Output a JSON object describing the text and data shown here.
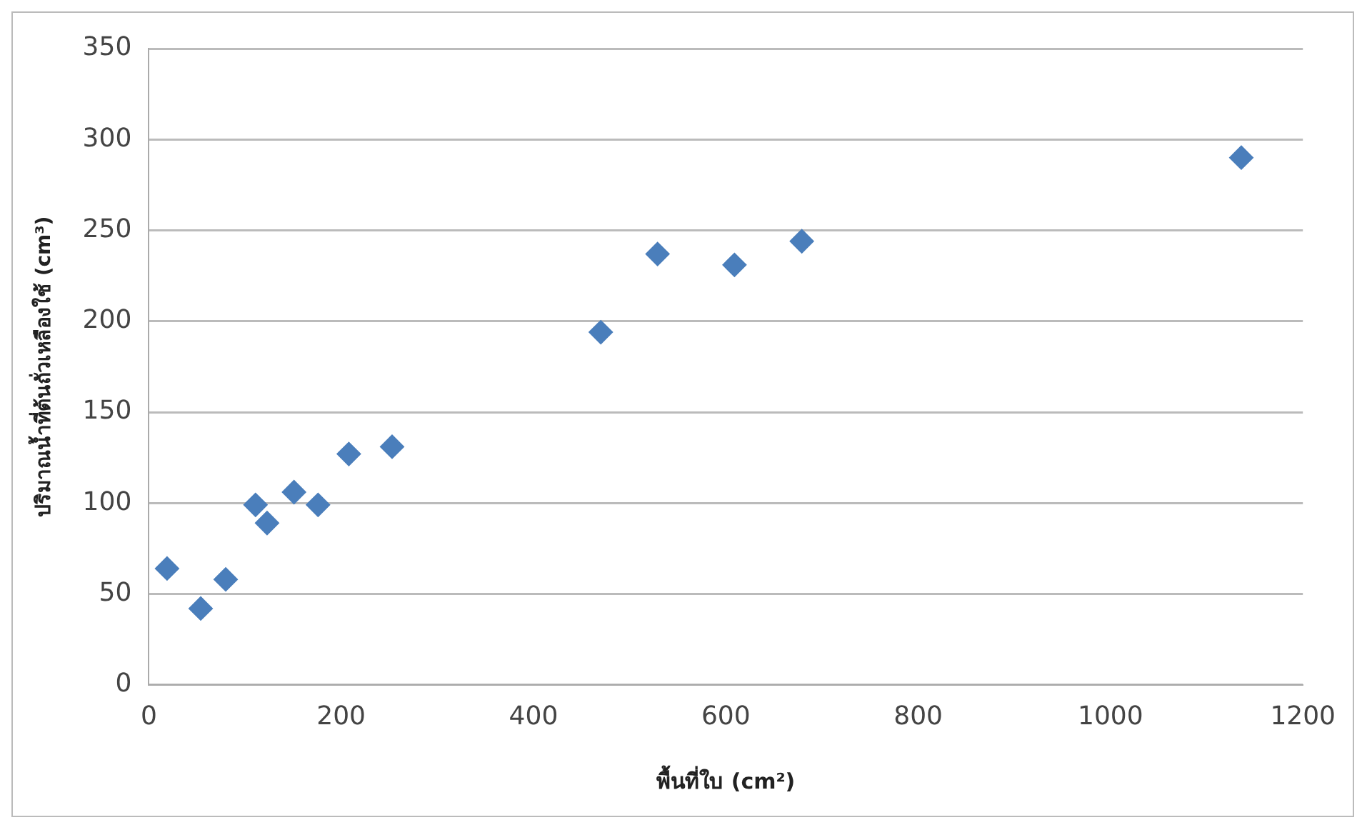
{
  "chart_data": {
    "type": "scatter",
    "xlabel": "พื้นที่ใบ (cm²)",
    "ylabel": "ปริมาณน้ำที่ต้นถั่วเหลืองใช้ (cm³)",
    "x": [
      19,
      54,
      80,
      111,
      123,
      151,
      176,
      208,
      253,
      470,
      529,
      609,
      679,
      1136
    ],
    "series": [
      {
        "color": "#4a7ebb",
        "values": [
          64,
          42,
          58,
          99,
          89,
          106,
          99,
          127,
          131,
          194,
          237,
          231,
          244,
          290
        ]
      }
    ],
    "xlim": [
      0,
      1200
    ],
    "xticks": [
      0,
      200,
      400,
      600,
      800,
      1000,
      1200
    ],
    "ylim": [
      0,
      350
    ],
    "yticks": [
      0,
      50,
      100,
      150,
      200,
      250,
      300,
      350
    ],
    "grid": "y",
    "legend": false,
    "marker": "diamond"
  }
}
